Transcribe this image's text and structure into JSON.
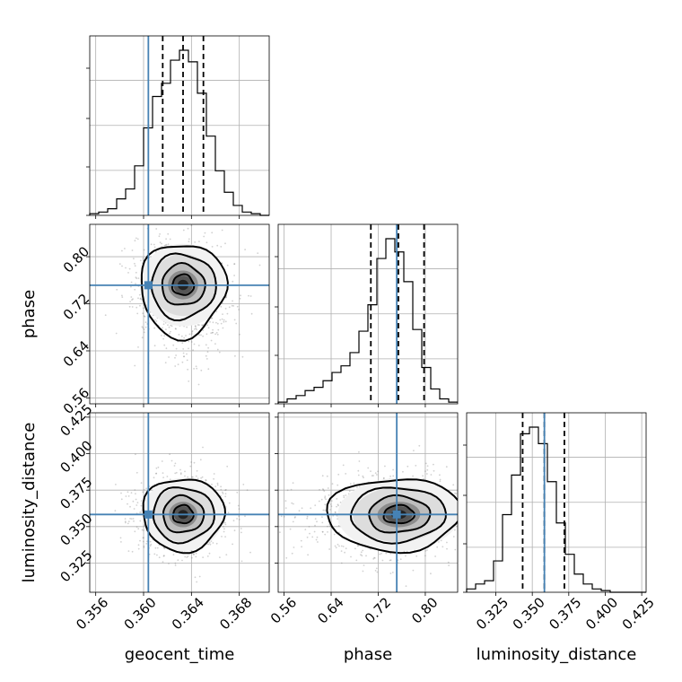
{
  "chart_data": {
    "type": "corner",
    "truth_color": "#4682b4",
    "parameters": [
      {
        "name": "geocent_time",
        "label": "geocent_time",
        "range": [
          0.3555,
          0.3705
        ],
        "ticks": [
          0.356,
          0.36,
          0.364,
          0.368
        ],
        "tick_labels": [
          "0.356",
          "0.360",
          "0.364",
          "0.368"
        ],
        "truth": 0.3604,
        "quantiles": [
          0.3616,
          0.3633,
          0.365
        ],
        "hist_bin_width": 0.00075,
        "hist_counts": [
          0.01,
          0.02,
          0.04,
          0.1,
          0.16,
          0.3,
          0.53,
          0.72,
          0.8,
          0.94,
          1.0,
          0.93,
          0.74,
          0.48,
          0.27,
          0.14,
          0.06,
          0.02,
          0.01,
          0.0
        ]
      },
      {
        "name": "phase",
        "label": "phase",
        "range": [
          0.55,
          0.855
        ],
        "ticks": [
          0.56,
          0.64,
          0.72,
          0.8
        ],
        "tick_labels": [
          "0.56",
          "0.64",
          "0.72",
          "0.80"
        ],
        "truth": 0.7515,
        "quantiles": [
          0.7075,
          0.7543,
          0.7979
        ],
        "hist_bin_width": 0.01525,
        "hist_counts": [
          0.01,
          0.03,
          0.05,
          0.08,
          0.1,
          0.14,
          0.19,
          0.23,
          0.31,
          0.44,
          0.6,
          0.88,
          1.0,
          0.92,
          0.74,
          0.45,
          0.22,
          0.09,
          0.03,
          0.01
        ]
      },
      {
        "name": "luminosity_distance",
        "label": "luminosity_distance",
        "range": [
          0.305,
          0.428
        ],
        "ticks": [
          0.325,
          0.35,
          0.375,
          0.4,
          0.425
        ],
        "tick_labels": [
          "0.325",
          "0.350",
          "0.375",
          "0.400",
          "0.425"
        ],
        "truth": 0.3583,
        "quantiles": [
          0.3434,
          0.3583,
          0.372
        ],
        "hist_bin_width": 0.00615,
        "hist_counts": [
          0.02,
          0.05,
          0.07,
          0.19,
          0.47,
          0.71,
          0.96,
          1.0,
          0.9,
          0.67,
          0.42,
          0.23,
          0.11,
          0.05,
          0.02,
          0.01,
          0.0,
          0.0,
          0.0,
          0.0
        ]
      }
    ],
    "pairs": [
      {
        "x": "geocent_time",
        "y": "phase",
        "center": [
          0.3633,
          0.752
        ],
        "sigma": [
          0.0018,
          0.035
        ],
        "correlation": -0.18,
        "left_tail_y": true,
        "contour_levels_sigma": [
          0.5,
          1.0,
          1.5,
          2.0
        ]
      },
      {
        "x": "geocent_time",
        "y": "luminosity_distance",
        "center": [
          0.3633,
          0.3583
        ],
        "sigma": [
          0.0017,
          0.0125
        ],
        "correlation": 0.0,
        "left_tail_y": false,
        "contour_levels_sigma": [
          0.5,
          1.0,
          1.5,
          2.0
        ]
      },
      {
        "x": "phase",
        "y": "luminosity_distance",
        "center": [
          0.755,
          0.3583
        ],
        "sigma": [
          0.052,
          0.0125
        ],
        "correlation": 0.05,
        "left_tail_x": true,
        "contour_levels_sigma": [
          0.5,
          1.0,
          1.5,
          2.0
        ]
      }
    ]
  }
}
